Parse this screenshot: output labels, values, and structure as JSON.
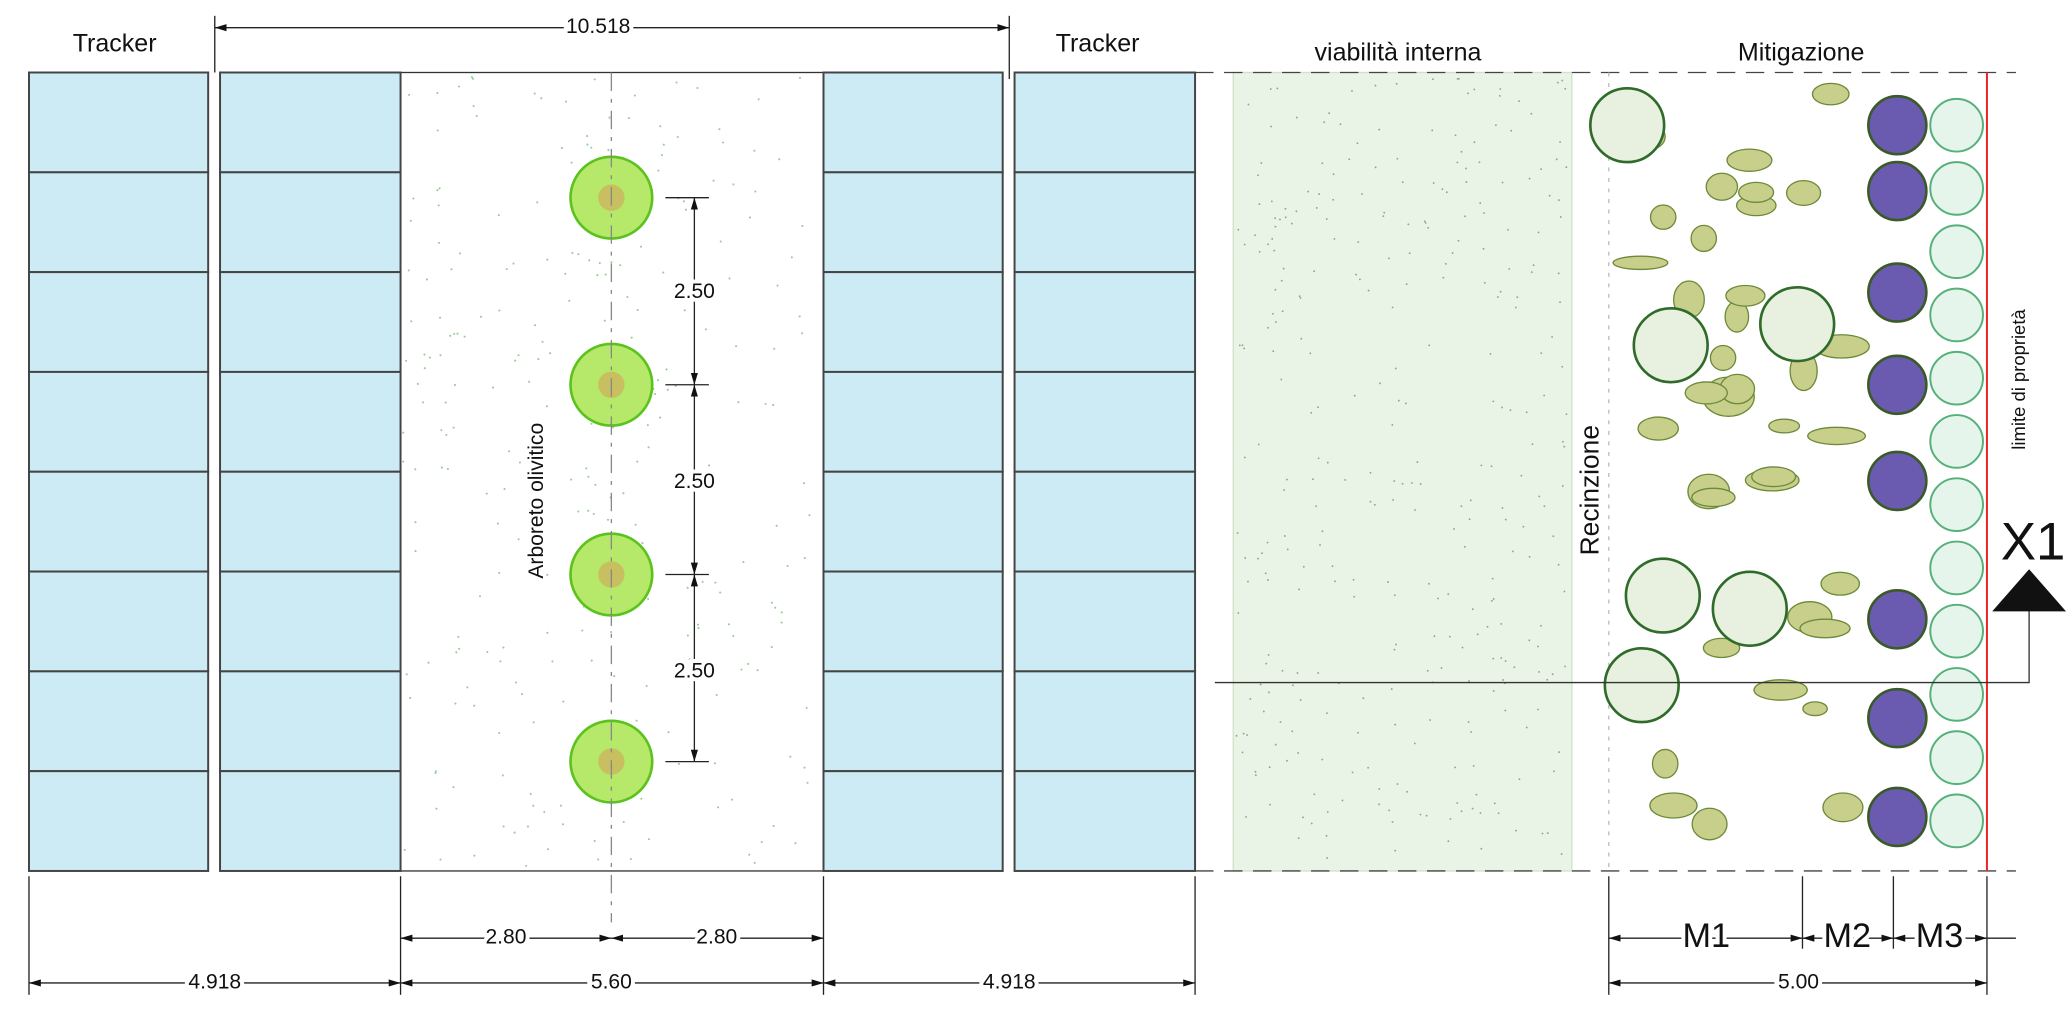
{
  "header": {
    "tracker_left": "Tracker",
    "overall_width": "10.518",
    "tracker_right": "Tracker",
    "road": "viabilità interna",
    "mitigation": "Mitigazione"
  },
  "olive_grove": {
    "label": "Arboreto olivitico",
    "spacings": [
      "2.50",
      "2.50",
      "2.50"
    ]
  },
  "labels": {
    "fence": "Recinzione",
    "property_limit": "limite di proprietà",
    "section": "X1"
  },
  "dimensions": {
    "half_widths": [
      "2.80",
      "2.80"
    ],
    "bottom": [
      "4.918",
      "5.60",
      "4.918"
    ],
    "mitigation_bands": [
      "M1",
      "M2",
      "M3"
    ],
    "mitigation_total": "5.00"
  }
}
